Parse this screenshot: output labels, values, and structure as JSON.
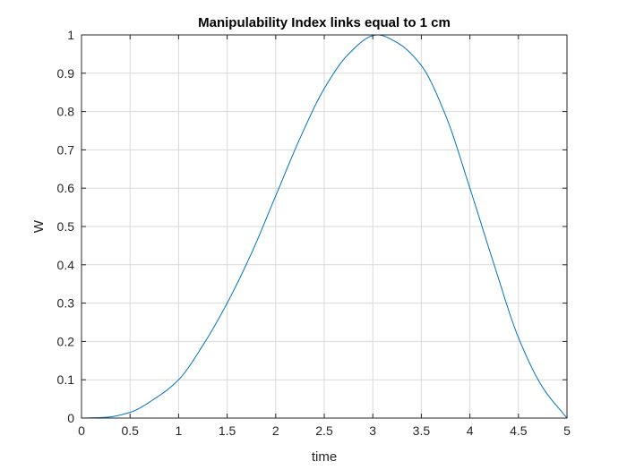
{
  "chart_data": {
    "type": "line",
    "title": "Manipulability Index links equal to 1 cm",
    "xlabel": "time",
    "ylabel": "W",
    "xlim": [
      0,
      5
    ],
    "ylim": [
      0,
      1
    ],
    "xticks": [
      0,
      0.5,
      1,
      1.5,
      2,
      2.5,
      3,
      3.5,
      4,
      4.5,
      5
    ],
    "xtick_labels": [
      "0",
      "0.5",
      "1",
      "1.5",
      "2",
      "2.5",
      "3",
      "3.5",
      "4",
      "4.5",
      "5"
    ],
    "yticks": [
      0,
      0.1,
      0.2,
      0.3,
      0.4,
      0.5,
      0.6,
      0.7,
      0.8,
      0.9,
      1
    ],
    "ytick_labels": [
      "0",
      "0.1",
      "0.2",
      "0.3",
      "0.4",
      "0.5",
      "0.6",
      "0.7",
      "0.8",
      "0.9",
      "1"
    ],
    "grid": true,
    "series": [
      {
        "color": "#0072bd",
        "x": [
          0,
          0.25,
          0.5,
          0.75,
          1,
          1.25,
          1.5,
          1.75,
          2,
          2.25,
          2.5,
          2.75,
          3,
          3.05,
          3.25,
          3.5,
          3.75,
          4,
          4.25,
          4.5,
          4.75,
          5
        ],
        "y": [
          0,
          0.002,
          0.015,
          0.05,
          0.1,
          0.19,
          0.3,
          0.43,
          0.58,
          0.73,
          0.86,
          0.95,
          0.998,
          1.0,
          0.98,
          0.92,
          0.79,
          0.6,
          0.4,
          0.21,
          0.08,
          0.0
        ]
      }
    ]
  }
}
